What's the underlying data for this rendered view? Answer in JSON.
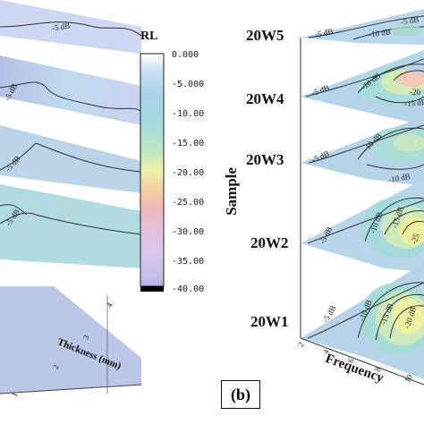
{
  "figure": {
    "panel_label": "(b)"
  },
  "colorbar": {
    "title": "RL",
    "ticks": [
      "0.000",
      "-5.000",
      "-10.00",
      "-15.00",
      "-20.00",
      "-25.00",
      "-30.00",
      "-35.00",
      "-40.00"
    ],
    "colors": [
      "#ffffff",
      "#bcd4ee",
      "#a8dde8",
      "#bfe7c8",
      "#eef1aa",
      "#f6caa4",
      "#efaab8",
      "#dcbfe0",
      "#cdc6ec",
      "#b8b2e2"
    ]
  },
  "left_panel": {
    "layer_labels": [
      "-5 dB",
      "-5 dB",
      "-5 dB",
      "-5 dB"
    ],
    "axis_title": "Thickness (mm)",
    "axis_ticks": [
      "1",
      "2",
      "3",
      "4"
    ]
  },
  "right_panel": {
    "y_axis_title": "Sample",
    "x_axis_title": "Frequency",
    "x_axis_ticks": [
      "2",
      "4",
      "6",
      "8",
      "10"
    ],
    "samples": [
      {
        "name": "20W5",
        "labels": [
          "-5 dB",
          "-10 dB",
          "-5 dB"
        ]
      },
      {
        "name": "20W4",
        "labels": [
          "-5 dB",
          "-10 dB",
          "-15 dB",
          "-20"
        ]
      },
      {
        "name": "20W3",
        "labels": [
          "-5 dB",
          "-10 dB",
          "-10 dB"
        ]
      },
      {
        "name": "20W2",
        "labels": [
          "-5 dB",
          "-10 dB",
          "-15 dB",
          "-25"
        ]
      },
      {
        "name": "20W1",
        "labels": [
          "-5 dB",
          "-10 dB",
          "-15 dB",
          "-20 dB"
        ]
      }
    ]
  },
  "chart_data": {
    "type": "heatmap",
    "title": "",
    "colorbar_label": "RL",
    "colorbar_range": [
      -40,
      0
    ],
    "series": [
      {
        "name": "20W5",
        "contour_levels": [
          -5,
          -10
        ]
      },
      {
        "name": "20W4",
        "contour_levels": [
          -5,
          -10,
          -15,
          -20
        ]
      },
      {
        "name": "20W3",
        "contour_levels": [
          -5,
          -10
        ]
      },
      {
        "name": "20W2",
        "contour_levels": [
          -5,
          -10,
          -15,
          -25
        ]
      },
      {
        "name": "20W1",
        "contour_levels": [
          -5,
          -10,
          -15,
          -20
        ]
      }
    ],
    "xlabel": "Frequency",
    "ylabel": "Sample",
    "left_panel_axis": "Thickness (mm)"
  }
}
